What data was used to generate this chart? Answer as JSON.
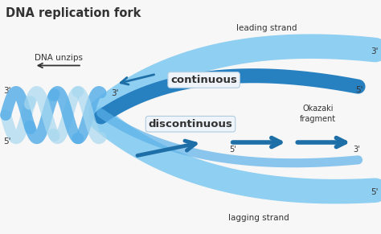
{
  "title": "DNA replication fork",
  "background_color": "#f7f7f7",
  "title_fontsize": 10.5,
  "title_fontweight": "bold",
  "light_blue": "#7dc8f0",
  "dark_blue": "#1e6fa8",
  "mid_blue": "#3a9fd6",
  "label_color": "#333333",
  "labels": {
    "leading_strand": "leading strand",
    "lagging_strand": "lagging strand",
    "continuous": "continuous",
    "discontinuous": "discontinuous",
    "dna_unzips": "DNA unzips",
    "okazaki": "Okazaki\nfragment"
  }
}
